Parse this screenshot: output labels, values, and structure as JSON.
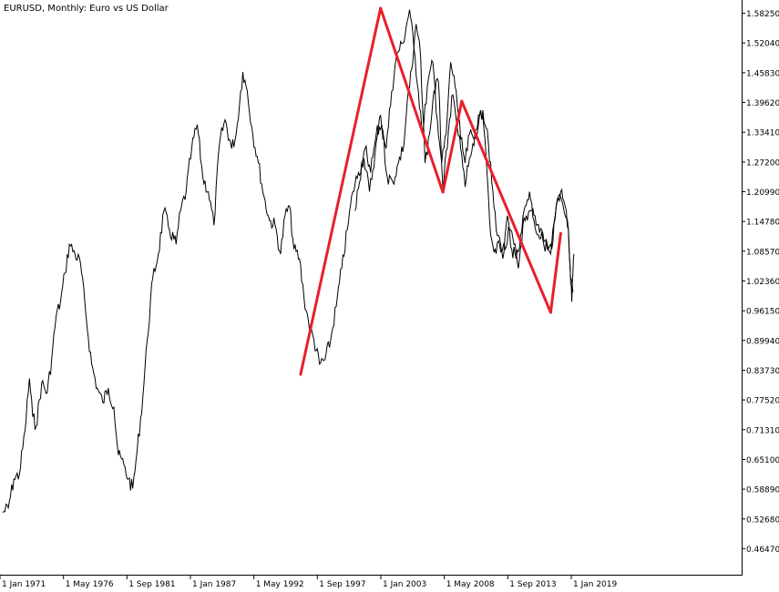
{
  "chart": {
    "symbol_caption": "EURUSD, Monthly:  Euro vs US Dollar"
  },
  "colors": {
    "background": "#ffffff",
    "price_line": "#000000",
    "pattern_line": "#e8202a",
    "axis": "#000000"
  },
  "chart_data": {
    "type": "line",
    "title": "EURUSD, Monthly:  Euro vs US Dollar",
    "xlabel": "",
    "ylabel": "",
    "x_ticks": [
      "1 Jan 1971",
      "1 May 1976",
      "1 Sep 1981",
      "1 Jan 1987",
      "1 May 1992",
      "1 Sep 1997",
      "1 Jan 2003",
      "1 May 2008",
      "1 Sep 2013",
      "1 Jan 2019"
    ],
    "y_ticks": [
      "1.58250",
      "1.52040",
      "1.45830",
      "1.39620",
      "1.33410",
      "1.27200",
      "1.20990",
      "1.14780",
      "1.08570",
      "1.02360",
      "0.96150",
      "0.89940",
      "0.83730",
      "0.77520",
      "0.71310",
      "0.65100",
      "0.58890",
      "0.52680",
      "0.46470"
    ],
    "xlim": [
      1971.0,
      2022.4
    ],
    "ylim": [
      0.4104,
      1.6102
    ],
    "grid": false,
    "series": [
      {
        "values": [
          [
            1971.0,
            0.54
          ],
          [
            1971.5,
            0.55
          ],
          [
            1972.0,
            0.61
          ],
          [
            1972.5,
            0.62
          ],
          [
            1973.0,
            0.71
          ],
          [
            1973.4,
            0.82
          ],
          [
            1973.7,
            0.74
          ],
          [
            1974.0,
            0.72
          ],
          [
            1974.5,
            0.81
          ],
          [
            1975.0,
            0.79
          ],
          [
            1975.4,
            0.86
          ],
          [
            1975.8,
            0.95
          ],
          [
            1976.2,
            0.98
          ],
          [
            1976.6,
            1.04
          ],
          [
            1977.0,
            1.1
          ],
          [
            1977.5,
            1.08
          ],
          [
            1978.0,
            1.06
          ],
          [
            1978.5,
            0.95
          ],
          [
            1979.0,
            0.85
          ],
          [
            1979.5,
            0.8
          ],
          [
            1980.0,
            0.77
          ],
          [
            1980.5,
            0.8
          ],
          [
            1981.0,
            0.76
          ],
          [
            1981.4,
            0.66
          ],
          [
            1981.9,
            0.64
          ],
          [
            1982.3,
            0.61
          ],
          [
            1982.7,
            0.59
          ],
          [
            1983.1,
            0.67
          ],
          [
            1983.6,
            0.78
          ],
          [
            1984.0,
            0.9
          ],
          [
            1984.5,
            1.03
          ],
          [
            1985.0,
            1.08
          ],
          [
            1985.5,
            1.17
          ],
          [
            1986.0,
            1.13
          ],
          [
            1986.6,
            1.1
          ],
          [
            1987.0,
            1.17
          ],
          [
            1987.5,
            1.21
          ],
          [
            1988.0,
            1.3
          ],
          [
            1988.5,
            1.35
          ],
          [
            1989.0,
            1.24
          ],
          [
            1989.5,
            1.21
          ],
          [
            1990.0,
            1.14
          ],
          [
            1990.5,
            1.31
          ],
          [
            1991.0,
            1.36
          ],
          [
            1991.6,
            1.3
          ],
          [
            1992.0,
            1.33
          ],
          [
            1992.6,
            1.46
          ],
          [
            1993.0,
            1.42
          ],
          [
            1993.5,
            1.33
          ],
          [
            1994.0,
            1.27
          ],
          [
            1994.5,
            1.2
          ],
          [
            1995.0,
            1.15
          ],
          [
            1995.5,
            1.14
          ],
          [
            1996.0,
            1.08
          ],
          [
            1996.4,
            1.16
          ],
          [
            1996.8,
            1.18
          ],
          [
            1997.2,
            1.09
          ],
          [
            1997.7,
            1.07
          ],
          [
            1998.1,
            0.99
          ],
          [
            1998.5,
            0.94
          ],
          [
            1999.0,
            0.9
          ],
          [
            1999.5,
            0.85
          ],
          [
            2000.0,
            0.86
          ],
          [
            2000.5,
            0.9
          ],
          [
            2001.0,
            0.97
          ],
          [
            2001.5,
            1.05
          ],
          [
            2002.0,
            1.13
          ],
          [
            2002.5,
            1.21
          ],
          [
            2003.0,
            1.25
          ],
          [
            2003.5,
            1.28
          ],
          [
            2004.0,
            1.21
          ],
          [
            2004.5,
            1.29
          ],
          [
            2005.0,
            1.37
          ],
          [
            2005.5,
            1.3
          ],
          [
            2006.0,
            1.42
          ],
          [
            2006.5,
            1.5
          ],
          [
            2007.0,
            1.52
          ],
          [
            2007.6,
            1.59
          ],
          [
            2008.0,
            1.51
          ],
          [
            2008.4,
            1.42
          ],
          [
            2008.8,
            1.33
          ],
          [
            2009.2,
            1.43
          ],
          [
            2009.7,
            1.48
          ],
          [
            2010.1,
            1.36
          ],
          [
            2010.5,
            1.27
          ],
          [
            2010.9,
            1.33
          ],
          [
            2011.3,
            1.48
          ],
          [
            2011.8,
            1.42
          ],
          [
            2012.2,
            1.32
          ],
          [
            2012.6,
            1.27
          ],
          [
            2013.0,
            1.33
          ],
          [
            2013.4,
            1.32
          ],
          [
            2013.8,
            1.35
          ],
          [
            2014.2,
            1.38
          ],
          [
            2014.6,
            1.34
          ],
          [
            2015.0,
            1.23
          ],
          [
            2015.4,
            1.13
          ],
          [
            2015.8,
            1.1
          ],
          [
            2016.2,
            1.09
          ],
          [
            2016.6,
            1.13
          ],
          [
            2017.0,
            1.1
          ],
          [
            2017.4,
            1.05
          ],
          [
            2017.8,
            1.14
          ],
          [
            2018.2,
            1.15
          ],
          [
            2018.6,
            1.17
          ],
          [
            2019.0,
            1.14
          ],
          [
            2019.5,
            1.13
          ],
          [
            2020.0,
            1.1
          ],
          [
            2020.4,
            1.09
          ],
          [
            2020.8,
            1.18
          ],
          [
            2021.2,
            1.21
          ],
          [
            2021.6,
            1.18
          ],
          [
            2021.9,
            1.13
          ],
          [
            2022.1,
            1.03
          ],
          [
            2022.3,
            1.0
          ]
        ]
      },
      {
        "values": [
          [
            2002.7,
            1.17
          ],
          [
            2003.1,
            1.23
          ],
          [
            2003.6,
            1.3
          ],
          [
            2004.1,
            1.25
          ],
          [
            2004.6,
            1.33
          ],
          [
            2005.1,
            1.35
          ],
          [
            2005.6,
            1.24
          ],
          [
            2006.1,
            1.23
          ],
          [
            2006.6,
            1.27
          ],
          [
            2007.1,
            1.31
          ],
          [
            2007.4,
            1.4
          ],
          [
            2007.9,
            1.48
          ],
          [
            2008.2,
            1.56
          ],
          [
            2008.6,
            1.49
          ],
          [
            2009.0,
            1.27
          ],
          [
            2009.4,
            1.33
          ],
          [
            2009.8,
            1.42
          ],
          [
            2010.2,
            1.44
          ],
          [
            2010.6,
            1.22
          ],
          [
            2011.0,
            1.3
          ],
          [
            2011.4,
            1.41
          ],
          [
            2011.8,
            1.36
          ],
          [
            2012.2,
            1.3
          ],
          [
            2012.6,
            1.22
          ],
          [
            2013.0,
            1.28
          ],
          [
            2013.3,
            1.31
          ],
          [
            2013.6,
            1.34
          ],
          [
            2013.8,
            1.37
          ],
          [
            2014.0,
            1.38
          ],
          [
            2014.3,
            1.34
          ],
          [
            2014.6,
            1.24
          ],
          [
            2014.9,
            1.12
          ],
          [
            2015.3,
            1.09
          ],
          [
            2015.7,
            1.1
          ],
          [
            2016.0,
            1.07
          ],
          [
            2016.4,
            1.16
          ],
          [
            2016.8,
            1.09
          ],
          [
            2017.2,
            1.07
          ],
          [
            2017.6,
            1.12
          ],
          [
            2018.0,
            1.18
          ],
          [
            2018.4,
            1.21
          ],
          [
            2018.8,
            1.15
          ],
          [
            2019.2,
            1.12
          ],
          [
            2019.6,
            1.11
          ],
          [
            2020.0,
            1.09
          ],
          [
            2020.3,
            1.08
          ],
          [
            2020.7,
            1.16
          ],
          [
            2021.0,
            1.2
          ],
          [
            2021.5,
            1.17
          ],
          [
            2021.9,
            1.13
          ],
          [
            2022.0,
            1.07
          ],
          [
            2022.1,
            1.02
          ],
          [
            2022.2,
            0.98
          ],
          [
            2022.3,
            1.04
          ],
          [
            2022.4,
            1.08
          ]
        ]
      }
    ],
    "pattern_lines": {
      "points": [
        [
          1997.8,
          0.8285
        ],
        [
          2005.0,
          1.593
        ],
        [
          2010.6,
          1.209
        ],
        [
          2012.3,
          1.399
        ],
        [
          2020.3,
          0.958
        ],
        [
          2021.2,
          1.123
        ]
      ]
    }
  }
}
